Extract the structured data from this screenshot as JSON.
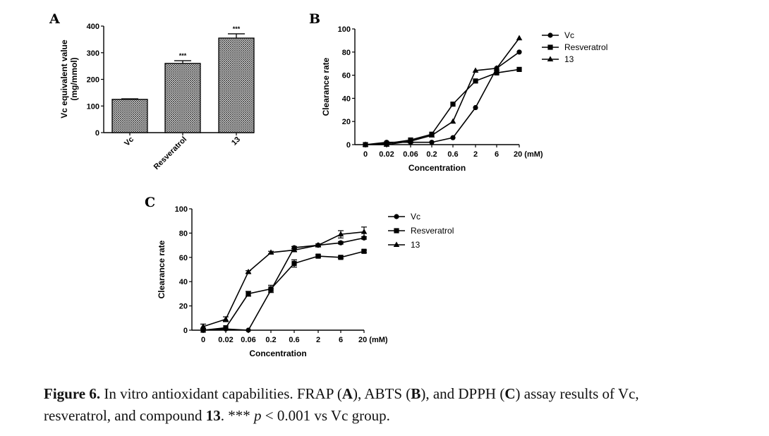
{
  "chart_data": [
    {
      "panel": "A",
      "type": "bar",
      "categories": [
        "Vc",
        "Resveratrol",
        "13"
      ],
      "values": [
        125,
        260,
        355
      ],
      "errors": [
        2,
        10,
        16
      ],
      "significance": [
        "",
        "***",
        "***"
      ],
      "ylabel": [
        "Vc equivalent value",
        "(mg/mmol)"
      ],
      "ylim": [
        0,
        400
      ],
      "yticks": [
        0,
        100,
        200,
        300,
        400
      ],
      "bar_fill": "crosshatch",
      "grid": false
    },
    {
      "panel": "B",
      "type": "line",
      "x": [
        "0",
        "0.02",
        "0.06",
        "0.2",
        "0.6",
        "2",
        "6",
        "20 (mM)"
      ],
      "xlabel": "Concentration",
      "ylabel": "Clearance rate",
      "ylim": [
        0,
        100
      ],
      "yticks": [
        0,
        20,
        40,
        60,
        80,
        100
      ],
      "legend_position": "top-right",
      "grid": false,
      "series": [
        {
          "name": "Vc",
          "marker": "circle",
          "values": [
            0,
            2,
            2,
            2,
            6,
            32,
            66,
            80
          ]
        },
        {
          "name": "Resveratrol",
          "marker": "square",
          "values": [
            0,
            1,
            4,
            9,
            35,
            55,
            62,
            65
          ]
        },
        {
          "name": "13",
          "marker": "triangle",
          "values": [
            0,
            0,
            3,
            8,
            20,
            64,
            66,
            92
          ]
        }
      ]
    },
    {
      "panel": "C",
      "type": "line",
      "x": [
        "0",
        "0.02",
        "0.06",
        "0.2",
        "0.6",
        "2",
        "6",
        "20 (mM)"
      ],
      "xlabel": "Concentration",
      "ylabel": "Clearance rate",
      "ylim": [
        0,
        100
      ],
      "yticks": [
        0,
        20,
        40,
        60,
        80,
        100
      ],
      "legend_position": "top-right",
      "grid": false,
      "series": [
        {
          "name": "Vc",
          "marker": "circle",
          "values": [
            0,
            1,
            0,
            33,
            68,
            70,
            72,
            76
          ],
          "errors": [
            0,
            0,
            0,
            1,
            1,
            1,
            1,
            1
          ]
        },
        {
          "name": "Resveratrol",
          "marker": "square",
          "values": [
            0,
            2,
            30,
            34,
            55,
            61,
            60,
            65
          ],
          "errors": [
            0,
            0,
            2,
            3,
            3,
            1,
            1,
            1
          ]
        },
        {
          "name": "13",
          "marker": "triangle",
          "values": [
            3,
            9,
            48,
            64,
            66,
            70,
            79,
            81
          ],
          "errors": [
            2,
            2,
            1,
            1,
            1,
            1,
            3,
            4
          ]
        }
      ]
    }
  ],
  "caption": {
    "label": "Figure 6.",
    "line1": [
      " In vitro antioxidant capabilities. FRAP (",
      "A",
      "), ABTS (",
      "B",
      "), and DPPH (",
      "C",
      ") assay results of Vc,"
    ],
    "line2_pre": "resveratrol, and compound ",
    "compound": "13",
    "stars": ". *** ",
    "p_symbol": "p",
    "line2_post": " < 0.001 vs Vc group."
  }
}
